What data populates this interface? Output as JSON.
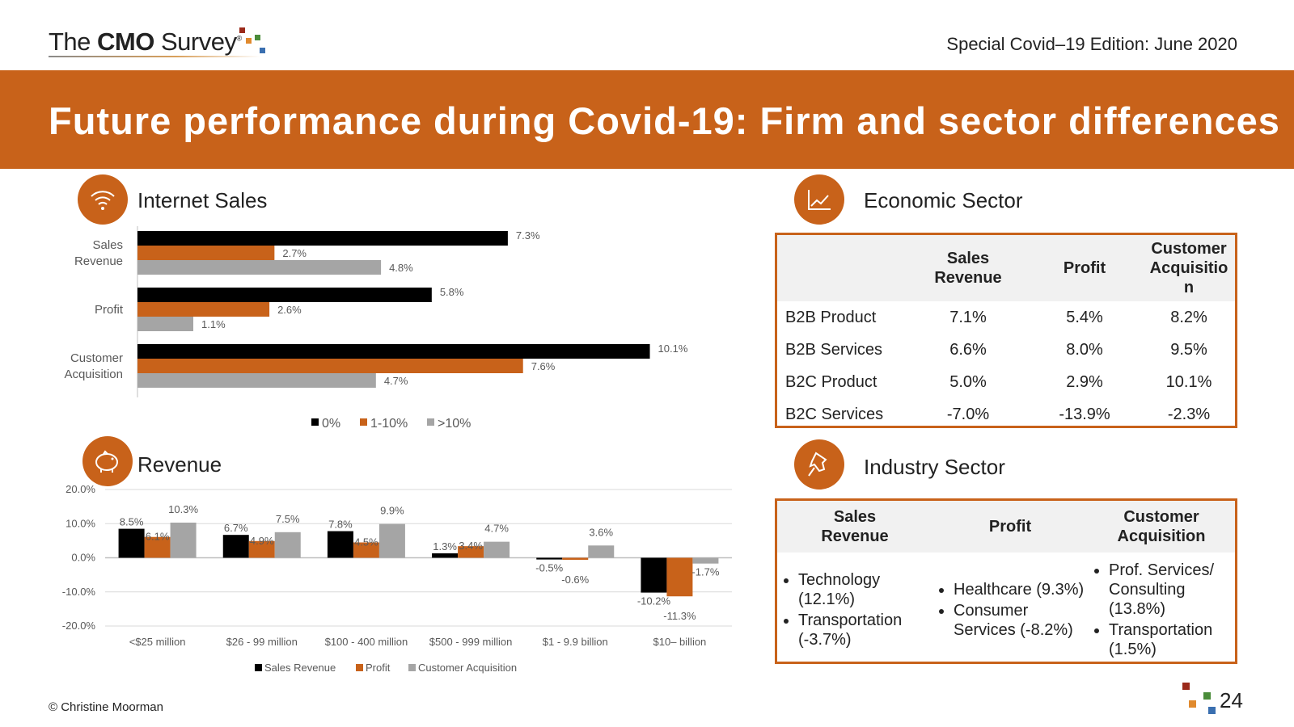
{
  "header": {
    "brand_the": "The ",
    "brand_cmo": "CMO",
    "brand_survey": " Survey",
    "brand_reg": "®",
    "edition": "Special Covid–19 Edition: June 2020",
    "title": "Future performance during Covid-19: Firm and sector differences"
  },
  "colors": {
    "accent": "#c8621a",
    "black": "#000000",
    "orange": "#c8621a",
    "gray": "#a5a5a5"
  },
  "icons": {
    "internet": "wifi-icon",
    "revenue": "piggy-bank-icon",
    "economic": "line-chart-icon",
    "industry": "pushpin-icon"
  },
  "internet_sales": {
    "title": "Internet Sales"
  },
  "revenue": {
    "title": "Revenue"
  },
  "economic_sector": {
    "title": "Economic Sector",
    "headers": [
      "",
      "Sales\nRevenue",
      "Profit",
      "Customer\nAcquisitio\nn"
    ],
    "rows": [
      [
        "B2B Product",
        "7.1%",
        "5.4%",
        "8.2%"
      ],
      [
        "B2B Services",
        "6.6%",
        "8.0%",
        "9.5%"
      ],
      [
        "B2C Product",
        "5.0%",
        "2.9%",
        "10.1%"
      ],
      [
        "B2C Services",
        "-7.0%",
        "-13.9%",
        "-2.3%"
      ]
    ]
  },
  "industry_sector": {
    "title": "Industry Sector",
    "headers": [
      "Sales\nRevenue",
      "Profit",
      "Customer\nAcquisition"
    ],
    "columns": [
      [
        "Technology (12.1%)",
        "Transportation (-3.7%)"
      ],
      [
        "Healthcare (9.3%)",
        "Consumer Services (-8.2%)"
      ],
      [
        "Prof. Services/ Consulting (13.8%)",
        "Transportation (1.5%)"
      ]
    ]
  },
  "footer": {
    "copyright": "© Christine Moorman",
    "page": "24"
  },
  "chart_data": [
    {
      "type": "bar",
      "orientation": "horizontal",
      "categories": [
        "Sales\nRevenue",
        "Profit",
        "Customer\nAcquisition"
      ],
      "series": [
        {
          "name": "0%",
          "values": [
            7.3,
            5.8,
            10.1
          ]
        },
        {
          "name": "1-10%",
          "values": [
            2.7,
            2.6,
            7.6
          ]
        },
        {
          "name": ">10%",
          "values": [
            4.8,
            1.1,
            4.7
          ]
        }
      ],
      "xlim": [
        0,
        11
      ],
      "legend": "bottom",
      "grid": false
    },
    {
      "type": "bar",
      "categories": [
        "<$25 million",
        "$26 - 99 million",
        "$100 - 400 million",
        "$500 - 999 million",
        "$1 - 9.9 billion",
        "$10– billion"
      ],
      "series": [
        {
          "name": "Sales Revenue",
          "values": [
            8.5,
            6.7,
            7.8,
            1.3,
            -0.5,
            -10.2
          ]
        },
        {
          "name": "Profit",
          "values": [
            6.1,
            4.9,
            4.5,
            3.4,
            -0.6,
            -11.3
          ]
        },
        {
          "name": "Customer Acquisition",
          "values": [
            10.3,
            7.5,
            9.9,
            4.7,
            3.6,
            -1.7
          ]
        }
      ],
      "yticks": [
        "20.0%",
        "10.0%",
        "0.0%",
        "-10.0%",
        "-20.0%"
      ],
      "ylim": [
        -20,
        20
      ],
      "legend": "bottom",
      "grid": true
    }
  ]
}
